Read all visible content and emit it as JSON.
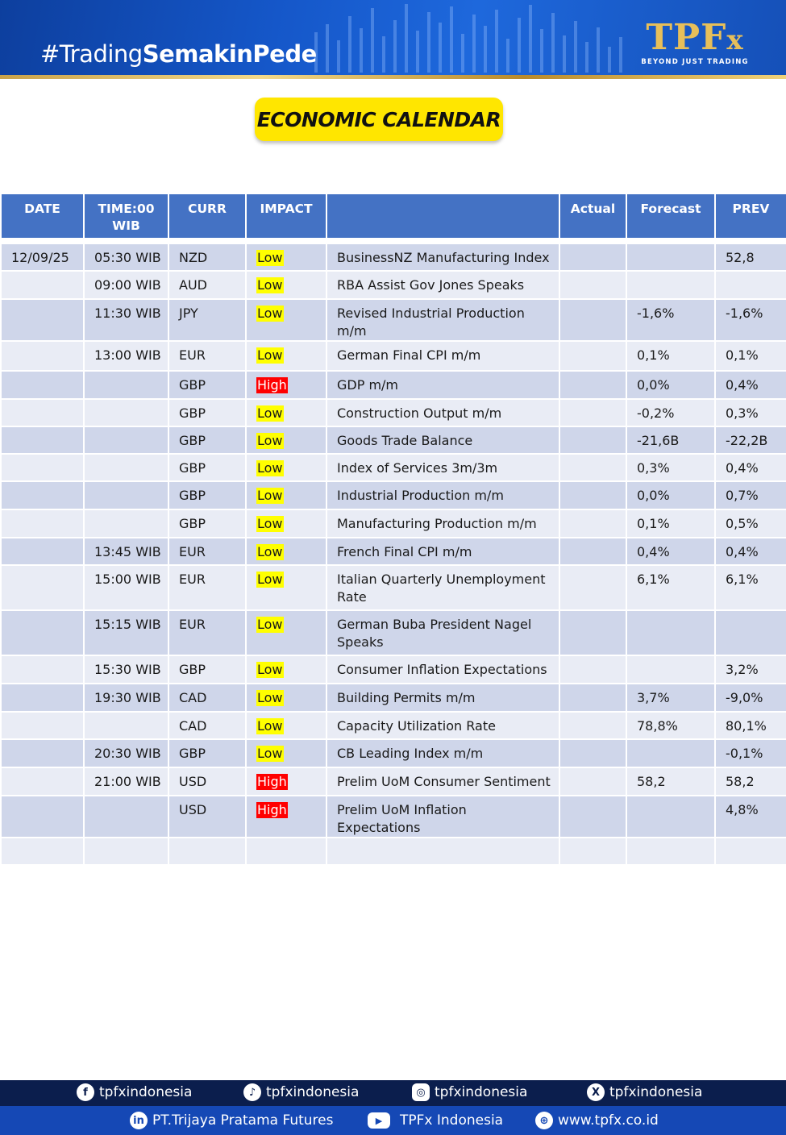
{
  "header": {
    "hashtag_normal": "#Trading",
    "hashtag_bold": "SemakinPede",
    "logo_main": "TPF",
    "logo_x": "x",
    "logo_tagline": "BEYOND JUST TRADING"
  },
  "title": "ECONOMIC CALENDAR",
  "table": {
    "headers": {
      "date": "DATE",
      "time_line1": "TIME:00",
      "time_line2": "WIB",
      "curr": "CURR",
      "impact": "IMPACT",
      "event": "",
      "actual": "Actual",
      "forecast": "Forecast",
      "prev": "PREV"
    },
    "rows": [
      {
        "date": "12/09/25",
        "time": "05:30 WIB",
        "curr": "NZD",
        "impact": "Low",
        "event": "BusinessNZ Manufacturing Index",
        "actual": "",
        "forecast": "",
        "prev": "52,8"
      },
      {
        "date": "",
        "time": "09:00 WIB",
        "curr": "AUD",
        "impact": "Low",
        "event": "RBA Assist Gov Jones Speaks",
        "actual": "",
        "forecast": "",
        "prev": ""
      },
      {
        "date": "",
        "time": "11:30 WIB",
        "curr": "JPY",
        "impact": "Low",
        "event": "Revised Industrial Production m/m",
        "actual": "",
        "forecast": "-1,6%",
        "prev": "-1,6%"
      },
      {
        "date": "",
        "time": "13:00 WIB",
        "curr": "EUR",
        "impact": "Low",
        "event": "German Final CPI m/m",
        "actual": "",
        "forecast": "0,1%",
        "prev": "0,1%"
      },
      {
        "date": "",
        "time": "",
        "curr": "GBP",
        "impact": "High",
        "event": "GDP m/m",
        "actual": "",
        "forecast": "0,0%",
        "prev": "0,4%"
      },
      {
        "date": "",
        "time": "",
        "curr": "GBP",
        "impact": "Low",
        "event": "Construction Output m/m",
        "actual": "",
        "forecast": "-0,2%",
        "prev": "0,3%"
      },
      {
        "date": "",
        "time": "",
        "curr": "GBP",
        "impact": "Low",
        "event": "Goods Trade Balance",
        "actual": "",
        "forecast": "-21,6B",
        "prev": "-22,2B"
      },
      {
        "date": "",
        "time": "",
        "curr": "GBP",
        "impact": "Low",
        "event": "Index of Services 3m/3m",
        "actual": "",
        "forecast": "0,3%",
        "prev": "0,4%"
      },
      {
        "date": "",
        "time": "",
        "curr": "GBP",
        "impact": "Low",
        "event": "Industrial Production m/m",
        "actual": "",
        "forecast": "0,0%",
        "prev": "0,7%"
      },
      {
        "date": "",
        "time": "",
        "curr": "GBP",
        "impact": "Low",
        "event": "Manufacturing Production m/m",
        "actual": "",
        "forecast": "0,1%",
        "prev": "0,5%"
      },
      {
        "date": "",
        "time": "13:45 WIB",
        "curr": "EUR",
        "impact": "Low",
        "event": "French Final CPI m/m",
        "actual": "",
        "forecast": "0,4%",
        "prev": "0,4%"
      },
      {
        "date": "",
        "time": "15:00 WIB",
        "curr": "EUR",
        "impact": "Low",
        "event": "Italian Quarterly Unemployment Rate",
        "actual": "",
        "forecast": "6,1%",
        "prev": "6,1%"
      },
      {
        "date": "",
        "time": "15:15 WIB",
        "curr": "EUR",
        "impact": "Low",
        "event": "German Buba President Nagel Speaks",
        "actual": "",
        "forecast": "",
        "prev": ""
      },
      {
        "date": "",
        "time": "15:30 WIB",
        "curr": "GBP",
        "impact": "Low",
        "event": "Consumer Inflation Expectations",
        "actual": "",
        "forecast": "",
        "prev": "3,2%"
      },
      {
        "date": "",
        "time": "19:30 WIB",
        "curr": "CAD",
        "impact": "Low",
        "event": "Building Permits m/m",
        "actual": "",
        "forecast": "3,7%",
        "prev": "-9,0%"
      },
      {
        "date": "",
        "time": "",
        "curr": "CAD",
        "impact": "Low",
        "event": "Capacity Utilization Rate",
        "actual": "",
        "forecast": "78,8%",
        "prev": "80,1%"
      },
      {
        "date": "",
        "time": "20:30 WIB",
        "curr": "GBP",
        "impact": "Low",
        "event": "CB Leading Index m/m",
        "actual": "",
        "forecast": "",
        "prev": "-0,1%"
      },
      {
        "date": "",
        "time": "21:00 WIB",
        "curr": "USD",
        "impact": "High",
        "event": "Prelim UoM Consumer Sentiment",
        "actual": "",
        "forecast": "58,2",
        "prev": "58,2"
      },
      {
        "date": "",
        "time": "",
        "curr": "USD",
        "impact": "High",
        "event": "Prelim UoM Inflation Expectations",
        "actual": "",
        "forecast": "",
        "prev": "4,8%"
      },
      {
        "date": "",
        "time": "",
        "curr": "",
        "impact": "",
        "event": "",
        "actual": "",
        "forecast": "",
        "prev": ""
      }
    ]
  },
  "footer": {
    "facebook": "tpfxindonesia",
    "tiktok": "tpfxindonesia",
    "instagram": "tpfxindonesia",
    "x": "tpfxindonesia",
    "linkedin": "PT.Trijaya Pratama Futures",
    "youtube": "TPFx Indonesia",
    "website": "www.tpfx.co.id"
  },
  "colors": {
    "header_blue": "#4472c4",
    "row_dark": "#cfd6ea",
    "row_light": "#e9ecf5",
    "low_highlight": "#ffff00",
    "high_highlight": "#ff0000",
    "title_yellow": "#ffe600",
    "gold": "#e7bf5a"
  }
}
